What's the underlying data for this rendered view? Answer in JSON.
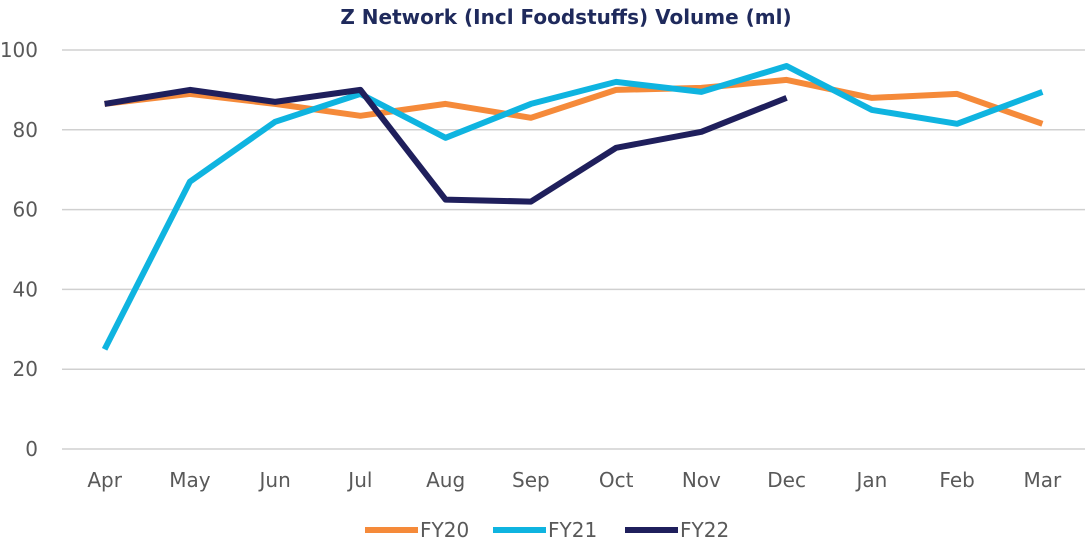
{
  "chart_data": {
    "type": "line",
    "title": "Z Network (Incl Foodstuffs) Volume (ml)",
    "xlabel": "",
    "ylabel": "",
    "categories": [
      "Apr",
      "May",
      "Jun",
      "Jul",
      "Aug",
      "Sep",
      "Oct",
      "Nov",
      "Dec",
      "Jan",
      "Feb",
      "Mar"
    ],
    "ylim": [
      0,
      100
    ],
    "yticks": [
      0,
      20,
      40,
      60,
      80,
      100
    ],
    "grid": true,
    "legend_position": "bottom",
    "series": [
      {
        "name": "FY20",
        "color": "#f58a3a",
        "values": [
          86.5,
          89,
          86.5,
          83.5,
          86.5,
          83,
          90,
          90.5,
          92.5,
          88,
          89,
          81.5
        ]
      },
      {
        "name": "FY21",
        "color": "#0fb4e0",
        "values": [
          25,
          67,
          82,
          89,
          78,
          86.5,
          92,
          89.5,
          96,
          85,
          81.5,
          89.5
        ]
      },
      {
        "name": "FY22",
        "color": "#1f1f5c",
        "values": [
          86.5,
          90,
          87,
          90,
          62.5,
          62,
          75.5,
          79.5,
          88,
          null,
          null,
          null
        ]
      }
    ]
  }
}
